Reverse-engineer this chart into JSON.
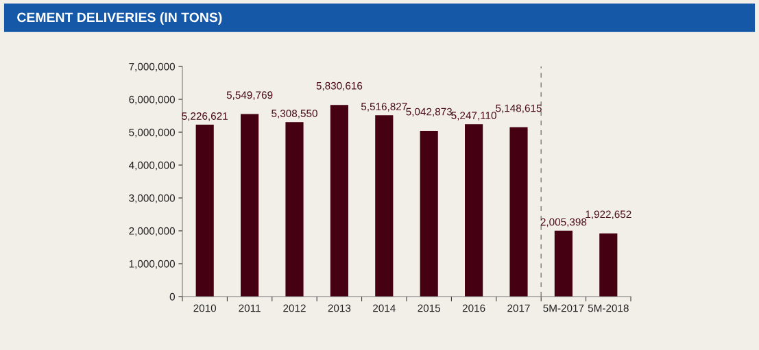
{
  "chart_data": {
    "type": "bar",
    "title": "CEMENT DELIVERIES (IN TONS)",
    "categories": [
      "2010",
      "2011",
      "2012",
      "2013",
      "2014",
      "2015",
      "2016",
      "2017",
      "5M-2017",
      "5M-2018"
    ],
    "values": [
      5226621,
      5549769,
      5308550,
      5830616,
      5516827,
      5042873,
      5247110,
      5148615,
      2005398,
      1922652
    ],
    "value_labels": [
      "5,226,621",
      "5,549,769",
      "5,308,550",
      "5,830,616",
      "5,516,827",
      "5,042,873",
      "5,247,110",
      "5,148,615",
      "2,005,398",
      "1,922,652"
    ],
    "color": "#450012",
    "ylim": [
      0,
      7000000
    ],
    "yticks": [
      {
        "value": 0,
        "label": "0"
      },
      {
        "value": 1000000,
        "label": "1,000,000"
      },
      {
        "value": 2000000,
        "label": "2,000,000"
      },
      {
        "value": 3000000,
        "label": "3,000,000"
      },
      {
        "value": 4000000,
        "label": "4,000,000"
      },
      {
        "value": 5000000,
        "label": "5,000,000"
      },
      {
        "value": 6000000,
        "label": "6,000,000"
      },
      {
        "value": 7000000,
        "label": "7,000,000"
      }
    ],
    "grid": false,
    "legend": false
  }
}
